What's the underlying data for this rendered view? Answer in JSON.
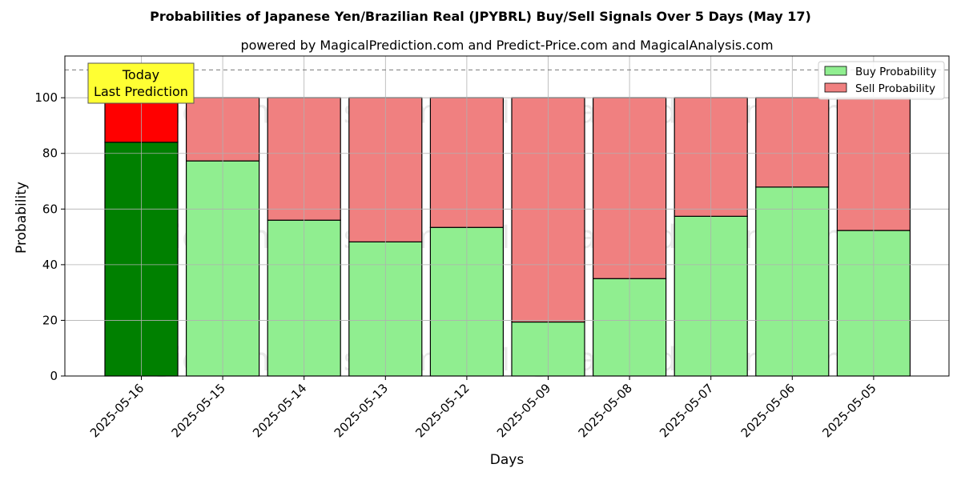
{
  "chart_data": {
    "type": "bar",
    "stacked": true,
    "title": "Probabilities of Japanese Yen/Brazilian Real (JPYBRL) Buy/Sell Signals Over 5 Days (May 17)",
    "subtitle": "powered by MagicalPrediction.com and Predict-Price.com and MagicalAnalysis.com",
    "xlabel": "Days",
    "ylabel": "Probability",
    "ylim": [
      0,
      115
    ],
    "yticks": [
      0,
      20,
      40,
      60,
      80,
      100
    ],
    "reference_line": 110,
    "grid": true,
    "legend_position": "top-right",
    "categories": [
      "2025-05-16",
      "2025-05-15",
      "2025-05-14",
      "2025-05-13",
      "2025-05-12",
      "2025-05-09",
      "2025-05-08",
      "2025-05-07",
      "2025-05-06",
      "2025-05-05"
    ],
    "series": [
      {
        "name": "Buy Probability",
        "values": [
          84,
          77.3,
          56,
          48.2,
          53.4,
          19.4,
          35,
          57.4,
          67.9,
          52.3
        ],
        "color": "#90ee90",
        "highlight_color": "#008000"
      },
      {
        "name": "Sell Probability",
        "values": [
          16,
          22.7,
          44,
          51.8,
          46.6,
          80.6,
          65,
          42.6,
          32.1,
          47.7
        ],
        "color": "#f08080",
        "highlight_color": "#ff0000"
      }
    ],
    "annotation": {
      "lines": [
        "Today",
        "Last Prediction"
      ],
      "color": "#ffff33"
    },
    "watermarks": [
      "MagicalAnalysis.com",
      "MagicalPrediction.com"
    ]
  }
}
